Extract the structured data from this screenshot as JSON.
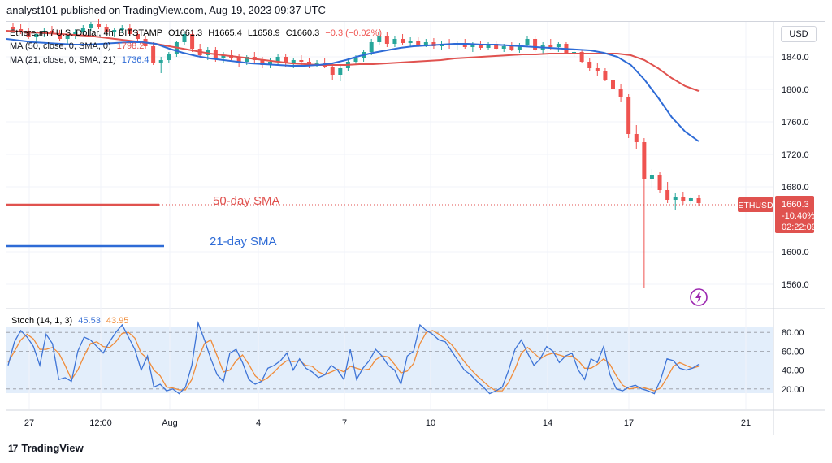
{
  "header": {
    "publisher": "analyst101 published on TradingView.com, Aug 19, 2023 09:37 UTC"
  },
  "legend": {
    "symbol": "Ethereum / U.S. Dollar, 4h, BITSTAMP",
    "o": "O1661.3",
    "h": "H1665.4",
    "l": "L1658.9",
    "c": "C1660.3",
    "chg": "−0.3 (−0.02%)",
    "ma50_label": "MA (50, close, 0, SMA, 0)",
    "ma50_value": "1798.2",
    "ma21_label": "MA (21, close, 0, SMA, 21)",
    "ma21_value": "1736.4"
  },
  "currency_button": "USD",
  "price_axis": {
    "ticks": [
      "1840.0",
      "1800.0",
      "1760.0",
      "1720.0",
      "1680.0",
      "1600.0",
      "1560.0"
    ]
  },
  "price_label": {
    "symbol": "ETHUSD",
    "price": "1660.3",
    "change": "-10.40%",
    "countdown": "02:22:09"
  },
  "annotations": {
    "sma50": "50-day SMA",
    "sma21": "21-day SMA"
  },
  "stoch": {
    "label": "Stoch (14, 1, 3)",
    "k": "45.53",
    "d": "43.95",
    "ticks": [
      "80.00",
      "60.00",
      "40.00",
      "20.00"
    ]
  },
  "time_axis": [
    "27",
    "12:00",
    "Aug",
    "4",
    "7",
    "10",
    "14",
    "17",
    "21"
  ],
  "footer": {
    "brand": "TradingView",
    "logo": "17"
  },
  "colors": {
    "up": "#26a69a",
    "down": "#ef5350",
    "ma50": "#e0524f",
    "ma21": "#2e6bd6",
    "stoch_k": "#3e74d6",
    "stoch_d": "#f08c3a",
    "band": "#e3eefb"
  },
  "chart_data": {
    "type": "candlestick",
    "interval": "4h",
    "ylim": [
      1540,
      1880
    ],
    "x_ticks": [
      "27",
      "12:00",
      "Aug",
      "4",
      "7",
      "10",
      "14",
      "17",
      "21"
    ],
    "candles": [
      [
        1877,
        1882,
        1870,
        1874
      ],
      [
        1874,
        1880,
        1868,
        1872
      ],
      [
        1872,
        1876,
        1862,
        1865
      ],
      [
        1865,
        1871,
        1858,
        1868
      ],
      [
        1868,
        1876,
        1864,
        1872
      ],
      [
        1872,
        1878,
        1866,
        1869
      ],
      [
        1869,
        1873,
        1860,
        1862
      ],
      [
        1862,
        1868,
        1856,
        1866
      ],
      [
        1866,
        1874,
        1862,
        1871
      ],
      [
        1871,
        1879,
        1868,
        1876
      ],
      [
        1876,
        1883,
        1872,
        1880
      ],
      [
        1880,
        1886,
        1874,
        1877
      ],
      [
        1877,
        1881,
        1868,
        1870
      ],
      [
        1870,
        1876,
        1864,
        1873
      ],
      [
        1873,
        1879,
        1869,
        1876
      ],
      [
        1876,
        1880,
        1866,
        1868
      ],
      [
        1868,
        1872,
        1858,
        1862
      ],
      [
        1862,
        1866,
        1850,
        1853
      ],
      [
        1853,
        1858,
        1830,
        1833
      ],
      [
        1833,
        1840,
        1820,
        1836
      ],
      [
        1836,
        1846,
        1832,
        1844
      ],
      [
        1844,
        1860,
        1840,
        1858
      ],
      [
        1858,
        1872,
        1855,
        1868
      ],
      [
        1868,
        1872,
        1846,
        1850
      ],
      [
        1850,
        1856,
        1838,
        1842
      ],
      [
        1842,
        1852,
        1836,
        1848
      ],
      [
        1848,
        1852,
        1834,
        1838
      ],
      [
        1838,
        1846,
        1832,
        1842
      ],
      [
        1842,
        1848,
        1836,
        1838
      ],
      [
        1838,
        1844,
        1828,
        1834
      ],
      [
        1834,
        1842,
        1830,
        1840
      ],
      [
        1840,
        1846,
        1832,
        1836
      ],
      [
        1836,
        1840,
        1826,
        1830
      ],
      [
        1830,
        1838,
        1826,
        1834
      ],
      [
        1834,
        1844,
        1830,
        1840
      ],
      [
        1840,
        1844,
        1828,
        1832
      ],
      [
        1832,
        1838,
        1826,
        1836
      ],
      [
        1836,
        1842,
        1830,
        1834
      ],
      [
        1834,
        1838,
        1826,
        1830
      ],
      [
        1830,
        1836,
        1828,
        1833
      ],
      [
        1833,
        1838,
        1826,
        1828
      ],
      [
        1828,
        1832,
        1812,
        1818
      ],
      [
        1818,
        1830,
        1810,
        1826
      ],
      [
        1826,
        1838,
        1822,
        1834
      ],
      [
        1834,
        1842,
        1830,
        1838
      ],
      [
        1838,
        1848,
        1834,
        1846
      ],
      [
        1846,
        1862,
        1842,
        1858
      ],
      [
        1858,
        1872,
        1855,
        1866
      ],
      [
        1866,
        1870,
        1852,
        1856
      ],
      [
        1856,
        1866,
        1852,
        1862
      ],
      [
        1862,
        1868,
        1854,
        1857
      ],
      [
        1857,
        1864,
        1852,
        1860
      ],
      [
        1860,
        1864,
        1852,
        1855
      ],
      [
        1855,
        1862,
        1852,
        1858
      ],
      [
        1858,
        1863,
        1850,
        1853
      ],
      [
        1853,
        1859,
        1848,
        1856
      ],
      [
        1856,
        1862,
        1850,
        1854
      ],
      [
        1854,
        1860,
        1848,
        1857
      ],
      [
        1857,
        1862,
        1850,
        1852
      ],
      [
        1852,
        1858,
        1846,
        1855
      ],
      [
        1855,
        1860,
        1848,
        1851
      ],
      [
        1851,
        1858,
        1848,
        1856
      ],
      [
        1856,
        1860,
        1848,
        1850
      ],
      [
        1850,
        1856,
        1846,
        1853
      ],
      [
        1853,
        1858,
        1847,
        1849
      ],
      [
        1849,
        1857,
        1845,
        1855
      ],
      [
        1855,
        1866,
        1852,
        1862
      ],
      [
        1862,
        1866,
        1846,
        1848
      ],
      [
        1848,
        1858,
        1844,
        1855
      ],
      [
        1855,
        1862,
        1849,
        1852
      ],
      [
        1852,
        1858,
        1846,
        1856
      ],
      [
        1856,
        1858,
        1843,
        1845
      ],
      [
        1845,
        1850,
        1840,
        1846
      ],
      [
        1846,
        1848,
        1832,
        1834
      ],
      [
        1834,
        1838,
        1822,
        1826
      ],
      [
        1826,
        1832,
        1816,
        1822
      ],
      [
        1822,
        1826,
        1810,
        1812
      ],
      [
        1812,
        1816,
        1796,
        1800
      ],
      [
        1800,
        1806,
        1784,
        1790
      ],
      [
        1790,
        1794,
        1740,
        1745
      ],
      [
        1745,
        1756,
        1726,
        1735
      ],
      [
        1735,
        1740,
        1556,
        1690
      ],
      [
        1690,
        1702,
        1678,
        1694
      ],
      [
        1694,
        1698,
        1672,
        1676
      ],
      [
        1676,
        1686,
        1660,
        1664
      ],
      [
        1664,
        1672,
        1652,
        1668
      ],
      [
        1668,
        1674,
        1658,
        1662
      ],
      [
        1662,
        1668,
        1658,
        1666
      ],
      [
        1666,
        1670,
        1656,
        1660
      ]
    ],
    "series": [
      {
        "name": "50-day SMA",
        "values": [
          1872,
          1871,
          1870,
          1869,
          1868,
          1867,
          1866,
          1864,
          1862,
          1860,
          1858,
          1856,
          1853,
          1850,
          1847,
          1844,
          1842,
          1840,
          1838,
          1836,
          1834,
          1832,
          1831,
          1830,
          1830,
          1830,
          1831,
          1831,
          1832,
          1833,
          1834,
          1835,
          1836,
          1838,
          1839,
          1840,
          1841,
          1842,
          1843,
          1843,
          1844,
          1844,
          1844,
          1844,
          1844,
          1844,
          1842,
          1836,
          1826,
          1814,
          1804,
          1798
        ]
      },
      {
        "name": "21-day SMA",
        "values": [
          1862,
          1860,
          1858,
          1857,
          1856,
          1855,
          1855,
          1856,
          1857,
          1858,
          1858,
          1856,
          1850,
          1845,
          1841,
          1838,
          1836,
          1834,
          1832,
          1831,
          1830,
          1829,
          1829,
          1830,
          1832,
          1836,
          1841,
          1845,
          1848,
          1851,
          1853,
          1854,
          1855,
          1856,
          1856,
          1855,
          1855,
          1854,
          1853,
          1852,
          1851,
          1850,
          1849,
          1848,
          1845,
          1840,
          1830,
          1812,
          1790,
          1766,
          1748,
          1736
        ]
      }
    ],
    "stochastic": {
      "ylim": [
        0,
        100
      ],
      "k": [
        45,
        70,
        82,
        75,
        65,
        45,
        78,
        68,
        30,
        32,
        28,
        60,
        75,
        72,
        65,
        58,
        70,
        80,
        88,
        75,
        62,
        40,
        55,
        22,
        25,
        18,
        20,
        15,
        22,
        45,
        90,
        72,
        52,
        35,
        28,
        58,
        62,
        48,
        30,
        25,
        28,
        42,
        45,
        50,
        58,
        40,
        52,
        42,
        38,
        32,
        35,
        45,
        40,
        30,
        62,
        30,
        42,
        50,
        62,
        55,
        45,
        40,
        25,
        55,
        60,
        88,
        82,
        78,
        72,
        70,
        60,
        50,
        40,
        35,
        28,
        22,
        15,
        18,
        22,
        40,
        62,
        72,
        58,
        45,
        52,
        65,
        60,
        48,
        55,
        58,
        40,
        30,
        52,
        48,
        65,
        35,
        20,
        18,
        22,
        24,
        20,
        18,
        15,
        30,
        52,
        50,
        42,
        40,
        42,
        46
      ],
      "d": [
        48,
        60,
        72,
        78,
        73,
        62,
        62,
        64,
        58,
        45,
        30,
        40,
        55,
        68,
        70,
        65,
        64,
        70,
        79,
        80,
        74,
        58,
        52,
        40,
        34,
        22,
        21,
        19,
        19,
        30,
        52,
        68,
        72,
        55,
        38,
        40,
        50,
        56,
        46,
        34,
        28,
        32,
        38,
        45,
        50,
        49,
        50,
        45,
        44,
        38,
        35,
        38,
        41,
        38,
        44,
        42,
        40,
        41,
        51,
        55,
        54,
        46,
        37,
        39,
        47,
        68,
        80,
        82,
        78,
        73,
        67,
        58,
        49,
        41,
        34,
        28,
        22,
        18,
        18,
        27,
        41,
        58,
        64,
        58,
        52,
        56,
        58,
        56,
        54,
        55,
        50,
        42,
        42,
        46,
        52,
        46,
        34,
        24,
        20,
        21,
        22,
        20,
        18,
        21,
        32,
        44,
        48,
        45,
        42,
        44
      ]
    }
  }
}
